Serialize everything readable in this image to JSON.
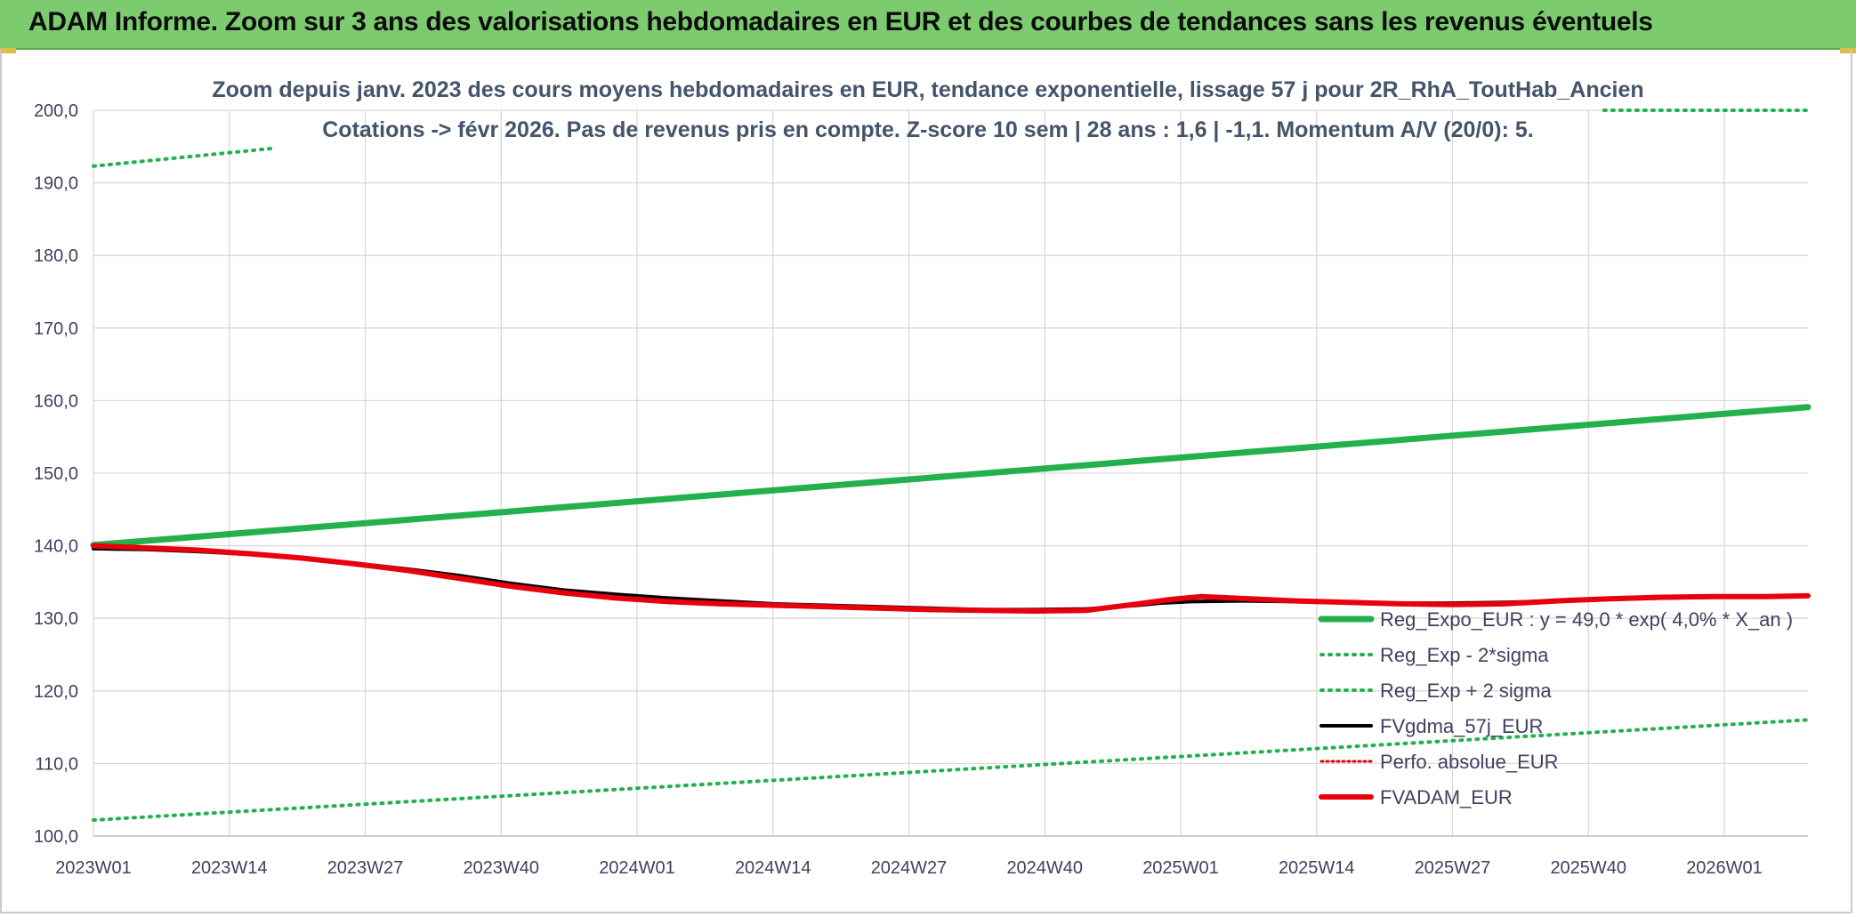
{
  "banner": {
    "title": "ADAM Informe. Zoom sur 3 ans des valorisations hebdomadaires en EUR et des courbes de tendances sans les revenus éventuels"
  },
  "colors": {
    "banner": "#7ccb6f",
    "reg_expo": "#22b14c",
    "reg_sigma": "#22b14c",
    "fvgdma": "#000000",
    "perfo": "#e00000",
    "fvadam": "#e8000b",
    "grid": "#d9d9d9",
    "text": "#404060"
  },
  "chart_data": {
    "type": "line",
    "title": [
      "Zoom depuis janv. 2023 des cours moyens hebdomadaires en EUR, tendance exponentielle, lissage 57 j pour 2R_RhA_ToutHab_Ancien",
      "Cotations -> févr 2026. Pas de revenus pris en compte. Z-score 10 sem | 28 ans : 1,6 | -1,1. Momentum A/V (20/0): 5."
    ],
    "xlabel": "",
    "ylabel": "",
    "x_ticks": [
      "2023W01",
      "2023W14",
      "2023W27",
      "2023W40",
      "2024W01",
      "2024W14",
      "2024W27",
      "2024W40",
      "2025W01",
      "2025W14",
      "2025W27",
      "2025W40",
      "2026W01"
    ],
    "x_range": [
      0,
      164
    ],
    "ylim": [
      100,
      200
    ],
    "y_ticks": [
      "100,0",
      "110,0",
      "120,0",
      "130,0",
      "140,0",
      "150,0",
      "160,0",
      "170,0",
      "180,0",
      "190,0",
      "200,0"
    ],
    "grid": true,
    "legend_position": "bottom-right",
    "series": [
      {
        "name": "Reg_Expo_EUR : y = 49,0 * exp( 4,0% *  X_an )",
        "style": "solid-thick",
        "x": [
          0,
          164
        ],
        "y": [
          140.1,
          159.1
        ]
      },
      {
        "name": "Reg_Exp - 2*sigma",
        "style": "dotted",
        "x": [
          0,
          164
        ],
        "y": [
          102.2,
          116.0
        ]
      },
      {
        "name": "Reg_Exp + 2 sigma",
        "style": "dotted",
        "x": [
          0,
          17.5,
          144.5,
          164
        ],
        "y": [
          192.3,
          194.8,
          200.0,
          200.0
        ]
      },
      {
        "name": "FVgdma_57j_EUR",
        "style": "solid",
        "x": [
          0,
          5,
          10,
          15,
          20,
          25,
          30,
          35,
          40,
          45,
          50,
          55,
          60,
          65,
          70,
          75,
          80,
          85,
          90,
          95,
          100,
          102,
          105,
          110,
          115,
          120,
          125,
          130,
          135,
          140,
          145,
          150,
          155,
          160,
          164
        ],
        "y": [
          139.6,
          139.5,
          139.2,
          138.8,
          138.3,
          137.6,
          136.8,
          135.9,
          134.8,
          133.9,
          133.3,
          132.8,
          132.4,
          132.0,
          131.8,
          131.6,
          131.4,
          131.2,
          131.2,
          131.3,
          131.8,
          132.1,
          132.3,
          132.4,
          132.3,
          132.2,
          132.1,
          132.1,
          132.2,
          132.4,
          132.6,
          132.8,
          132.9,
          133.0,
          133.1
        ]
      },
      {
        "name": "Perfo. absolue_EUR",
        "style": "dotted-thin",
        "x": [],
        "y": []
      },
      {
        "name": "FVADAM_EUR",
        "style": "solid-thick",
        "x": [
          0,
          5,
          10,
          15,
          20,
          25,
          30,
          35,
          40,
          45,
          50,
          55,
          60,
          65,
          70,
          75,
          80,
          85,
          90,
          95,
          100,
          103,
          106,
          109,
          112,
          115,
          120,
          125,
          130,
          135,
          140,
          145,
          150,
          155,
          160,
          164
        ],
        "y": [
          140.0,
          139.7,
          139.4,
          138.9,
          138.3,
          137.5,
          136.6,
          135.5,
          134.4,
          133.5,
          132.8,
          132.3,
          132.0,
          131.8,
          131.6,
          131.4,
          131.2,
          131.1,
          131.0,
          131.1,
          132.0,
          132.6,
          133.0,
          132.8,
          132.6,
          132.4,
          132.2,
          132.0,
          131.9,
          132.0,
          132.4,
          132.7,
          132.9,
          133.0,
          133.0,
          133.1
        ]
      }
    ]
  }
}
